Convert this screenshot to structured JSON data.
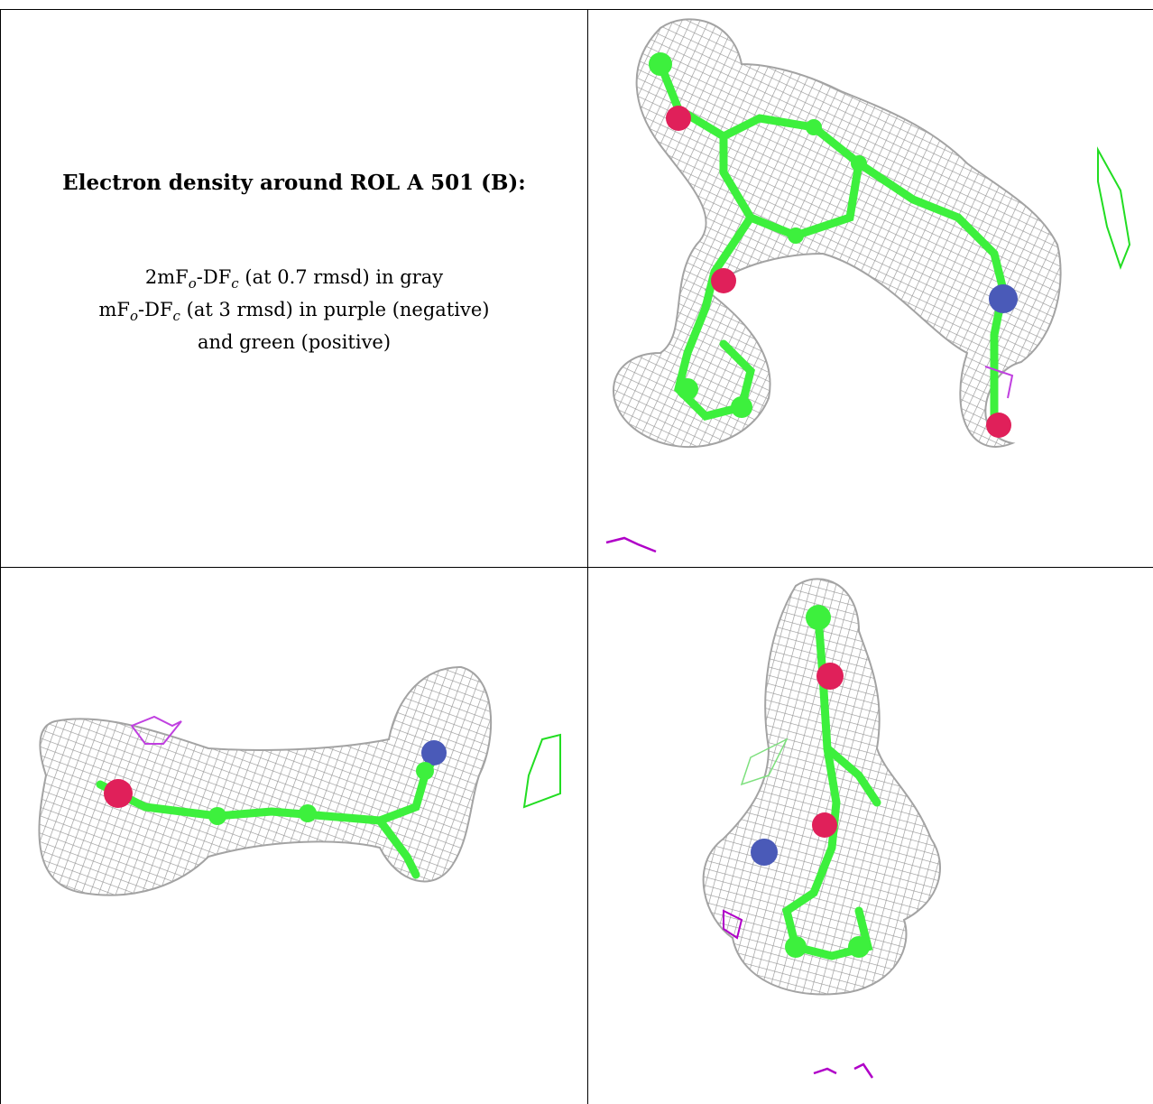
{
  "caption": {
    "title": "Electron density around ROL A 501 (B):",
    "line1_prefix": "2mF",
    "line1_sub1": "o",
    "line1_mid": "-DF",
    "line1_sub2": "c",
    "line1_suffix": " (at 0.7 rmsd) in gray",
    "line2_prefix": "mF",
    "line2_sub1": "o",
    "line2_mid": "-DF",
    "line2_sub2": "c",
    "line2_suffix": " (at 3 rmsd) in purple (negative)",
    "line3": "and green (positive)"
  },
  "colors": {
    "mesh_2fofc": "#9a9a9a",
    "mesh_negative": "#b000c8",
    "mesh_positive": "#22dd22",
    "carbon": "#3df03d",
    "oxygen": "#e0205a",
    "nitrogen": "#4a5ab8"
  },
  "panels": [
    {
      "name": "top-right-view"
    },
    {
      "name": "bottom-left-view"
    },
    {
      "name": "bottom-right-view"
    }
  ]
}
